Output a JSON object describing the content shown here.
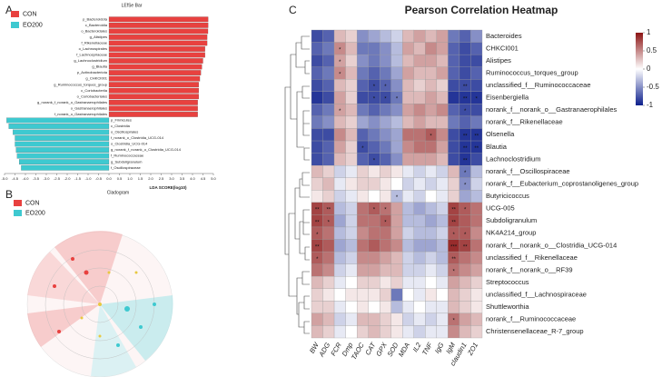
{
  "panels": [
    "A",
    "B",
    "C"
  ],
  "chart_data": [
    {
      "type": "bar",
      "orientation": "horizontal",
      "title": "LEfSe Bar",
      "xlabel": "LDA SCORE(log10)",
      "categories": [
        "p_Bacteroidota",
        "c_Bacteroidia",
        "o_Bacteroidales",
        "g_Alistipes",
        "f_Rikenellaceae",
        "o_Lachnospirales",
        "f_Lachnospiraceae",
        "g_Lachnoclostridium",
        "g_Blautia",
        "p_Actinobacteriota",
        "g_CHKCI001",
        "g_Ruminococcus_torques_group",
        "c_Coriobacteriia",
        "o_Coriobacteriales",
        "g_norank_f_norank_o_Gastranaerophilales",
        "o_Gastranaerophilales",
        "f_norank_o_Gastranaerophilales",
        "p_Firmicutes",
        "c_Clostridia",
        "o_Oscillospirales",
        "f_norank_o_Clostridia_UCG-014",
        "o_Clostridia_UCG-014",
        "g_norank_f_norank_o_Clostridia_UCG-014",
        "f_Ruminococcaceae",
        "g_Subdoligranulum",
        "f_Oscillospiraceae"
      ],
      "series": [
        {
          "name": "CON",
          "color": "#e8413f",
          "values": [
            4.75,
            4.75,
            4.74,
            4.7,
            4.7,
            4.6,
            4.6,
            4.5,
            4.45,
            4.4,
            4.35,
            4.3,
            4.3,
            4.3,
            4.25,
            4.25,
            4.25,
            null,
            null,
            null,
            null,
            null,
            null,
            null,
            null,
            null
          ]
        },
        {
          "name": "EO200",
          "color": "#3ec9d0",
          "values": [
            null,
            null,
            null,
            null,
            null,
            null,
            null,
            null,
            null,
            null,
            null,
            null,
            null,
            null,
            null,
            null,
            null,
            -4.9,
            -4.8,
            -4.6,
            -4.5,
            -4.5,
            -4.45,
            -4.4,
            -4.3,
            -4.2
          ]
        }
      ],
      "xlim": [
        -5.0,
        5.0
      ],
      "xticks": [
        {
          "value": -5,
          "label": "-5.0"
        },
        {
          "value": -4.5,
          "label": "-4.5"
        },
        {
          "value": -4,
          "label": "-4.0"
        },
        {
          "value": -3.5,
          "label": "-3.5"
        },
        {
          "value": -3,
          "label": "-3.0"
        },
        {
          "value": -2.5,
          "label": "-2.5"
        },
        {
          "value": -2,
          "label": "-2.0"
        },
        {
          "value": -1.5,
          "label": "-1.5"
        },
        {
          "value": -1,
          "label": "-1.0"
        },
        {
          "value": -0.5,
          "label": "-0.5"
        },
        {
          "value": 0,
          "label": "0.0"
        },
        {
          "value": 0.5,
          "label": "0.5"
        },
        {
          "value": 1,
          "label": "1.0"
        },
        {
          "value": 1.5,
          "label": "1.5"
        },
        {
          "value": 2,
          "label": "2.0"
        },
        {
          "value": 2.5,
          "label": "2.5"
        },
        {
          "value": 3,
          "label": "3.0"
        },
        {
          "value": 3.5,
          "label": "3.5"
        },
        {
          "value": 4,
          "label": "4.0"
        },
        {
          "value": 4.5,
          "label": "4.5"
        },
        {
          "value": 5,
          "label": "5.0"
        }
      ]
    },
    {
      "type": "heatmap",
      "title": "Pearson Correlation Heatmap",
      "x": [
        "BW",
        "ADG",
        "FCR",
        "Dmp",
        "TAOC",
        "CAT",
        "GPX",
        "SOD",
        "MDA",
        "IL2",
        "TNF",
        "IgG",
        "IgM",
        "claudin1",
        "ZO1"
      ],
      "y": [
        "Bacteroides",
        "CHKCI001",
        "Alistipes",
        "Ruminococcus_torques_group",
        "unclassified_f__Ruminococcaceae",
        "Eisenbergiella",
        "norank_f__norank_o__Gastranaerophilales",
        "norank_f__Rikenellaceae",
        "Olsenella",
        "Blautia",
        "Lachnoclostridium",
        "norank_f__Oscillospiraceae",
        "norank_f__Eubacterium_coprostanoligenes_group",
        "Butyricicoccus",
        "UCG-005",
        "Subdoligranulum",
        "NK4A214_group",
        "norank_f__norank_o__Clostridia_UCG-014",
        "unclassified_f__Rikenellaceae",
        "norank_f__norank_o__RF39",
        "Streptococcus",
        "unclassified_f__Lachnospiraceae",
        "Shuttleworthia",
        "norank_f__Ruminococcaceae",
        "Christensenellaceae_R-7_group"
      ],
      "values": [
        [
          -0.8,
          -0.7,
          0.3,
          0.2,
          -0.5,
          -0.4,
          -0.3,
          -0.2,
          0.3,
          0.4,
          0.3,
          0.4,
          -0.6,
          -0.7,
          -0.5
        ],
        [
          -0.7,
          -0.6,
          0.5,
          0.3,
          -0.6,
          -0.6,
          -0.5,
          -0.3,
          0.4,
          0.3,
          0.5,
          0.4,
          -0.7,
          -0.8,
          -0.7
        ],
        [
          -0.8,
          -0.7,
          0.4,
          0.2,
          -0.5,
          -0.6,
          -0.5,
          -0.3,
          0.3,
          0.4,
          0.4,
          0.3,
          -0.7,
          -0.8,
          -0.8
        ],
        [
          -0.7,
          -0.6,
          0.5,
          0.3,
          -0.6,
          -0.7,
          -0.6,
          -0.4,
          0.4,
          0.3,
          0.3,
          0.4,
          -0.7,
          -0.8,
          -0.7
        ],
        [
          -0.8,
          -0.7,
          0.3,
          0.2,
          -0.7,
          -0.8,
          -0.7,
          -0.5,
          0.3,
          0.2,
          0.3,
          0.2,
          -0.8,
          -0.8,
          -0.8
        ],
        [
          -0.9,
          -0.8,
          0.4,
          0.2,
          -0.8,
          -0.8,
          -0.8,
          -0.6,
          0.3,
          0.3,
          0.4,
          0.3,
          -0.9,
          -0.9,
          -0.9
        ],
        [
          -0.7,
          -0.6,
          0.4,
          0.3,
          -0.6,
          -0.7,
          -0.6,
          -0.5,
          0.4,
          0.5,
          0.4,
          0.5,
          -0.7,
          -0.8,
          -0.8
        ],
        [
          -0.6,
          -0.5,
          0.3,
          0.2,
          -0.4,
          -0.5,
          -0.4,
          -0.3,
          0.3,
          0.4,
          0.3,
          0.3,
          -0.6,
          -0.7,
          -0.6
        ],
        [
          -0.8,
          -0.8,
          0.5,
          0.3,
          -0.7,
          -0.6,
          -0.5,
          -0.4,
          0.6,
          0.6,
          0.7,
          0.5,
          -0.8,
          -0.9,
          -0.9
        ],
        [
          -0.8,
          -0.7,
          0.4,
          0.2,
          -0.8,
          -0.7,
          -0.6,
          -0.4,
          0.5,
          0.6,
          0.6,
          0.4,
          -0.8,
          -0.9,
          -0.9
        ],
        [
          -0.8,
          -0.7,
          0.3,
          0.2,
          -0.7,
          -0.8,
          -0.7,
          -0.5,
          0.4,
          0.4,
          0.4,
          0.3,
          -0.8,
          -0.9,
          -0.8
        ],
        [
          0.3,
          0.2,
          -0.2,
          -0.1,
          0.2,
          0.1,
          0.2,
          0.1,
          -0.1,
          -0.2,
          -0.1,
          -0.2,
          0.3,
          -0.6,
          -0.3
        ],
        [
          0.2,
          0.3,
          -0.1,
          0.1,
          0.2,
          0.2,
          0.1,
          0.0,
          -0.2,
          -0.1,
          -0.2,
          -0.1,
          0.2,
          -0.5,
          -0.2
        ],
        [
          0.1,
          0.2,
          -0.2,
          -0.1,
          0.1,
          0.0,
          0.1,
          -0.3,
          -0.1,
          -0.2,
          0.0,
          -0.1,
          0.2,
          -0.4,
          -0.3
        ],
        [
          0.8,
          0.7,
          -0.3,
          -0.2,
          0.6,
          0.7,
          0.6,
          0.4,
          -0.3,
          -0.4,
          -0.3,
          -0.2,
          0.8,
          0.7,
          0.6
        ],
        [
          0.8,
          0.7,
          -0.4,
          -0.2,
          0.6,
          0.6,
          0.7,
          0.4,
          -0.3,
          -0.3,
          -0.4,
          -0.3,
          0.8,
          0.7,
          0.6
        ],
        [
          0.7,
          0.6,
          -0.3,
          -0.2,
          0.5,
          0.6,
          0.6,
          0.4,
          -0.2,
          -0.3,
          -0.3,
          -0.2,
          0.7,
          0.7,
          0.5
        ],
        [
          0.8,
          0.7,
          -0.4,
          -0.3,
          0.6,
          0.7,
          0.6,
          0.5,
          -0.3,
          -0.4,
          -0.4,
          -0.3,
          0.9,
          0.8,
          0.6
        ],
        [
          0.7,
          0.6,
          -0.3,
          -0.2,
          0.5,
          0.5,
          0.4,
          0.3,
          -0.2,
          -0.3,
          -0.2,
          -0.3,
          0.7,
          0.6,
          0.5
        ],
        [
          0.6,
          0.5,
          -0.2,
          -0.1,
          0.4,
          0.4,
          0.3,
          0.3,
          -0.2,
          -0.2,
          -0.1,
          -0.2,
          0.6,
          0.5,
          0.4
        ],
        [
          0.3,
          0.2,
          -0.1,
          0.0,
          0.2,
          0.2,
          0.1,
          0.2,
          -0.1,
          -0.1,
          0.0,
          -0.1,
          0.4,
          0.3,
          0.2
        ],
        [
          0.2,
          0.1,
          0.0,
          0.1,
          0.1,
          0.1,
          0.2,
          -0.6,
          0.0,
          -0.1,
          0.1,
          0.0,
          0.3,
          0.2,
          0.1
        ],
        [
          0.2,
          0.2,
          -0.1,
          0.0,
          0.1,
          0.0,
          0.1,
          -0.3,
          -0.1,
          0.0,
          -0.1,
          -0.1,
          0.3,
          0.2,
          0.1
        ],
        [
          0.4,
          0.3,
          -0.2,
          -0.1,
          0.3,
          0.3,
          0.2,
          0.1,
          -0.2,
          -0.1,
          -0.2,
          -0.1,
          0.6,
          0.4,
          0.3
        ],
        [
          0.3,
          0.2,
          -0.1,
          0.0,
          0.2,
          0.3,
          0.2,
          0.1,
          -0.1,
          -0.2,
          -0.1,
          -0.1,
          0.5,
          0.3,
          0.2
        ]
      ],
      "annotations": [
        {
          "row": 1,
          "column": 2,
          "label": "*"
        },
        {
          "row": 2,
          "column": 2,
          "label": "*"
        },
        {
          "row": 3,
          "column": 2,
          "label": "*"
        },
        {
          "row": 4,
          "column": 5,
          "label": "*"
        },
        {
          "row": 4,
          "column": 6,
          "label": "*"
        },
        {
          "row": 4,
          "column": 13,
          "label": "**"
        },
        {
          "row": 5,
          "column": 5,
          "label": "*"
        },
        {
          "row": 5,
          "column": 6,
          "label": "*"
        },
        {
          "row": 5,
          "column": 7,
          "label": "*"
        },
        {
          "row": 5,
          "column": 13,
          "label": "**"
        },
        {
          "row": 5,
          "column": 14,
          "label": "*"
        },
        {
          "row": 6,
          "column": 2,
          "label": "*"
        },
        {
          "row": 6,
          "column": 13,
          "label": "*"
        },
        {
          "row": 8,
          "column": 10,
          "label": "*"
        },
        {
          "row": 8,
          "column": 13,
          "label": "**"
        },
        {
          "row": 8,
          "column": 14,
          "label": "**"
        },
        {
          "row": 9,
          "column": 4,
          "label": "*"
        },
        {
          "row": 9,
          "column": 13,
          "label": "**"
        },
        {
          "row": 9,
          "column": 14,
          "label": "**"
        },
        {
          "row": 10,
          "column": 5,
          "label": "*"
        },
        {
          "row": 10,
          "column": 13,
          "label": "**"
        },
        {
          "row": 11,
          "column": 13,
          "label": "*"
        },
        {
          "row": 12,
          "column": 13,
          "label": "*"
        },
        {
          "row": 13,
          "column": 7,
          "label": "*"
        },
        {
          "row": 14,
          "column": 0,
          "label": "**"
        },
        {
          "row": 14,
          "column": 1,
          "label": "**"
        },
        {
          "row": 14,
          "column": 5,
          "label": "*"
        },
        {
          "row": 14,
          "column": 6,
          "label": "*"
        },
        {
          "row": 14,
          "column": 12,
          "label": "**"
        },
        {
          "row": 14,
          "column": 13,
          "label": "*"
        },
        {
          "row": 15,
          "column": 0,
          "label": "**"
        },
        {
          "row": 15,
          "column": 1,
          "label": "*"
        },
        {
          "row": 15,
          "column": 6,
          "label": "*"
        },
        {
          "row": 15,
          "column": 12,
          "label": "**"
        },
        {
          "row": 16,
          "column": 0,
          "label": "*"
        },
        {
          "row": 16,
          "column": 12,
          "label": "*"
        },
        {
          "row": 16,
          "column": 13,
          "label": "*"
        },
        {
          "row": 17,
          "column": 0,
          "label": "**"
        },
        {
          "row": 17,
          "column": 12,
          "label": "***"
        },
        {
          "row": 17,
          "column": 13,
          "label": "**"
        },
        {
          "row": 18,
          "column": 0,
          "label": "*"
        },
        {
          "row": 18,
          "column": 12,
          "label": "**"
        },
        {
          "row": 19,
          "column": 12,
          "label": "*"
        },
        {
          "row": 23,
          "column": 12,
          "label": "*"
        }
      ],
      "colors": [
        "#0c1f8c",
        "#ffffff",
        "#8c1414"
      ],
      "clim": [
        -1,
        1
      ],
      "cticks": [
        1,
        0.5,
        0,
        -0.5,
        -1
      ]
    }
  ],
  "cladogram": {
    "title": "Cladogram",
    "legend": [
      "CON",
      "EO200"
    ]
  }
}
